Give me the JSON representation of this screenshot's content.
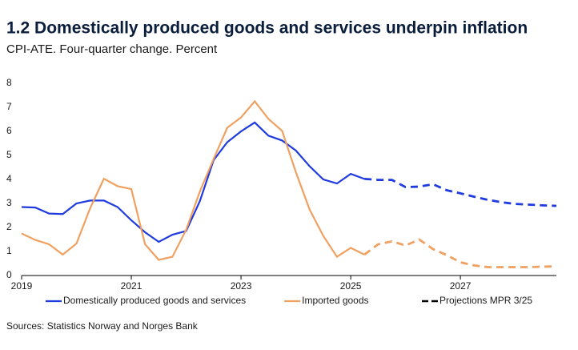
{
  "chart_data": {
    "type": "line",
    "title": "1.2 Domestically produced goods and services underpin inflation",
    "subtitle": "CPI-ATE. Four-quarter change. Percent",
    "source": "Sources: Statistics Norway and Norges Bank",
    "x": [
      2019,
      2019.25,
      2019.5,
      2019.75,
      2020,
      2020.25,
      2020.5,
      2020.75,
      2021,
      2021.25,
      2021.5,
      2021.75,
      2022,
      2022.25,
      2022.5,
      2022.75,
      2023,
      2023.25,
      2023.5,
      2023.75,
      2024,
      2024.25,
      2024.5,
      2024.75,
      2025,
      2025.25,
      2025.5,
      2025.75,
      2026,
      2026.25,
      2026.5,
      2026.75,
      2027,
      2027.25,
      2027.5,
      2027.75,
      2028,
      2028.25,
      2028.5,
      2028.75
    ],
    "series": [
      {
        "name": "Domestically produced goods and services",
        "color": "#1f3be0",
        "values": [
          2.85,
          2.83,
          2.58,
          2.56,
          3.0,
          3.12,
          3.12,
          2.85,
          2.3,
          1.8,
          1.4,
          1.7,
          1.85,
          3.1,
          4.8,
          5.55,
          6.0,
          6.37,
          5.82,
          5.62,
          5.2,
          4.55,
          4.0,
          3.83,
          4.23,
          4.02,
          3.98,
          3.98,
          3.68,
          3.7,
          3.8,
          3.55,
          3.42,
          3.28,
          3.15,
          3.05,
          2.98,
          2.95,
          2.92,
          2.9
        ]
      },
      {
        "name": "Imported goods",
        "color": "#f0a060",
        "values": [
          1.75,
          1.48,
          1.3,
          0.87,
          1.33,
          2.8,
          4.03,
          3.72,
          3.6,
          1.3,
          0.65,
          0.78,
          1.9,
          3.5,
          4.85,
          6.15,
          6.58,
          7.25,
          6.52,
          6.02,
          4.3,
          2.75,
          1.65,
          0.78,
          1.15,
          0.87,
          1.3,
          1.42,
          1.25,
          1.5,
          1.1,
          0.85,
          0.55,
          0.42,
          0.35,
          0.35,
          0.35,
          0.35,
          0.37,
          0.38
        ]
      }
    ],
    "projection": {
      "name": "Projections MPR 3/25",
      "color": "#000000",
      "from": 2025.25
    },
    "xlim": [
      2019,
      2028.75
    ],
    "xticks": [
      2019,
      2021,
      2023,
      2025,
      2027
    ],
    "ylim": [
      0,
      8
    ],
    "yticks": [
      0,
      1,
      2,
      3,
      4,
      5,
      6,
      7,
      8
    ],
    "grid": false
  }
}
